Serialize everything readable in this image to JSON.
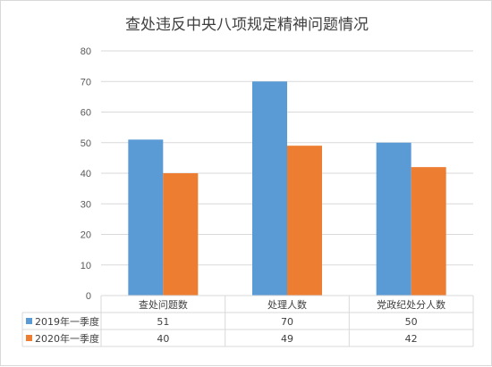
{
  "chart_data": {
    "type": "bar",
    "title": "查处违反中央八项规定精神问题情况",
    "categories": [
      "查处问题数",
      "处理人数",
      "党政纪处分人数"
    ],
    "series": [
      {
        "name": "2019年一季度",
        "values": [
          51,
          70,
          50
        ],
        "color": "#5b9bd5"
      },
      {
        "name": "2020年一季度",
        "values": [
          40,
          49,
          42
        ],
        "color": "#ed7d31"
      }
    ],
    "ylim": [
      0,
      80
    ],
    "yticks": [
      0,
      10,
      20,
      30,
      40,
      50,
      60,
      70,
      80
    ],
    "grid": true,
    "legend": "data-table"
  }
}
